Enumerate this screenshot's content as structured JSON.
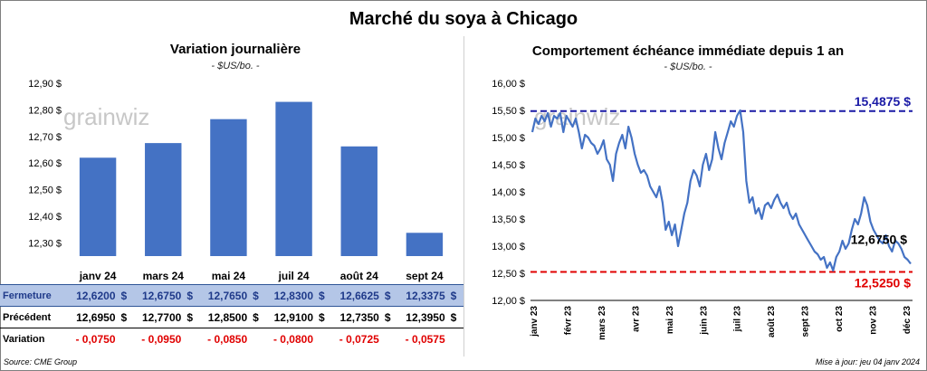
{
  "title": "Marché du soya à Chicago",
  "footer": {
    "source": "Source: CME Group",
    "updated": "Mise à jour: jeu 04 janv 2024"
  },
  "watermark": "grainwiz",
  "chart_data": [
    {
      "type": "bar",
      "title": "Variation journalière",
      "subtitle": "- $US/bo. -",
      "categories": [
        "janv 24",
        "mars 24",
        "mai 24",
        "juil 24",
        "août 24",
        "sept 24"
      ],
      "values": [
        12.62,
        12.675,
        12.765,
        12.83,
        12.6625,
        12.3375
      ],
      "ylim": [
        12.25,
        12.9
      ],
      "y_ticks": [
        "12,30 $",
        "12,40 $",
        "12,50 $",
        "12,60 $",
        "12,70 $",
        "12,80 $",
        "12,90 $"
      ],
      "color": "#4472c4"
    },
    {
      "type": "line",
      "title": "Comportement échéance immédiate depuis 1 an",
      "subtitle": "- $US/bo. -",
      "ylim": [
        12.0,
        16.0
      ],
      "y_ticks": [
        "12,00 $",
        "12,50 $",
        "13,00 $",
        "13,50 $",
        "14,00 $",
        "14,50 $",
        "15,00 $",
        "15,50 $",
        "16,00 $"
      ],
      "x_ticks": [
        "janv 23",
        "févr 23",
        "mars 23",
        "avr 23",
        "mai 23",
        "juin 23",
        "juil 23",
        "août 23",
        "sept 23",
        "oct 23",
        "nov 23",
        "déc 23"
      ],
      "series": [
        {
          "color": "#4472c4",
          "values": [
            15.1,
            15.35,
            15.25,
            15.4,
            15.3,
            15.45,
            15.2,
            15.4,
            15.35,
            15.45,
            15.1,
            15.4,
            15.3,
            15.2,
            15.35,
            15.1,
            14.8,
            15.05,
            15.0,
            14.9,
            14.85,
            14.7,
            14.8,
            14.95,
            14.6,
            14.5,
            14.2,
            14.7,
            14.9,
            15.05,
            14.8,
            15.2,
            15.0,
            14.7,
            14.5,
            14.35,
            14.4,
            14.3,
            14.1,
            14.0,
            13.9,
            14.1,
            13.8,
            13.3,
            13.45,
            13.2,
            13.4,
            13.0,
            13.3,
            13.6,
            13.8,
            14.2,
            14.4,
            14.3,
            14.1,
            14.5,
            14.7,
            14.4,
            14.6,
            15.1,
            14.8,
            14.6,
            14.9,
            15.1,
            15.3,
            15.2,
            15.4,
            15.5,
            15.1,
            14.2,
            13.8,
            13.9,
            13.6,
            13.7,
            13.5,
            13.75,
            13.8,
            13.7,
            13.85,
            13.95,
            13.8,
            13.7,
            13.8,
            13.6,
            13.5,
            13.6,
            13.4,
            13.3,
            13.2,
            13.1,
            13.0,
            12.9,
            12.85,
            12.75,
            12.8,
            12.6,
            12.7,
            12.55,
            12.8,
            12.9,
            13.1,
            12.95,
            13.05,
            13.3,
            13.5,
            13.4,
            13.6,
            13.9,
            13.75,
            13.45,
            13.3,
            13.2,
            13.1,
            13.05,
            13.2,
            13.0,
            12.9,
            13.1,
            13.05,
            12.95,
            12.8,
            12.75,
            12.675
          ]
        }
      ],
      "reference_lines": [
        {
          "value": 15.4875,
          "label": "15,4875 $",
          "color": "#1a1aa6"
        },
        {
          "value": 12.525,
          "label": "12,5250 $",
          "color": "#e00000"
        }
      ],
      "last_label": "12,6750 $"
    }
  ],
  "table": {
    "rows": [
      {
        "label": "Fermeture",
        "cells": [
          "12,6200",
          "12,6750",
          "12,7650",
          "12,8300",
          "12,6625",
          "12,3375"
        ],
        "currency": "$"
      },
      {
        "label": "Précédent",
        "cells": [
          "12,6950",
          "12,7700",
          "12,8500",
          "12,9100",
          "12,7350",
          "12,3950"
        ],
        "currency": "$"
      },
      {
        "label": "Variation",
        "cells": [
          "- 0,0750",
          "- 0,0950",
          "- 0,0850",
          "- 0,0800",
          "- 0,0725",
          "- 0,0575"
        ],
        "currency": ""
      }
    ]
  }
}
